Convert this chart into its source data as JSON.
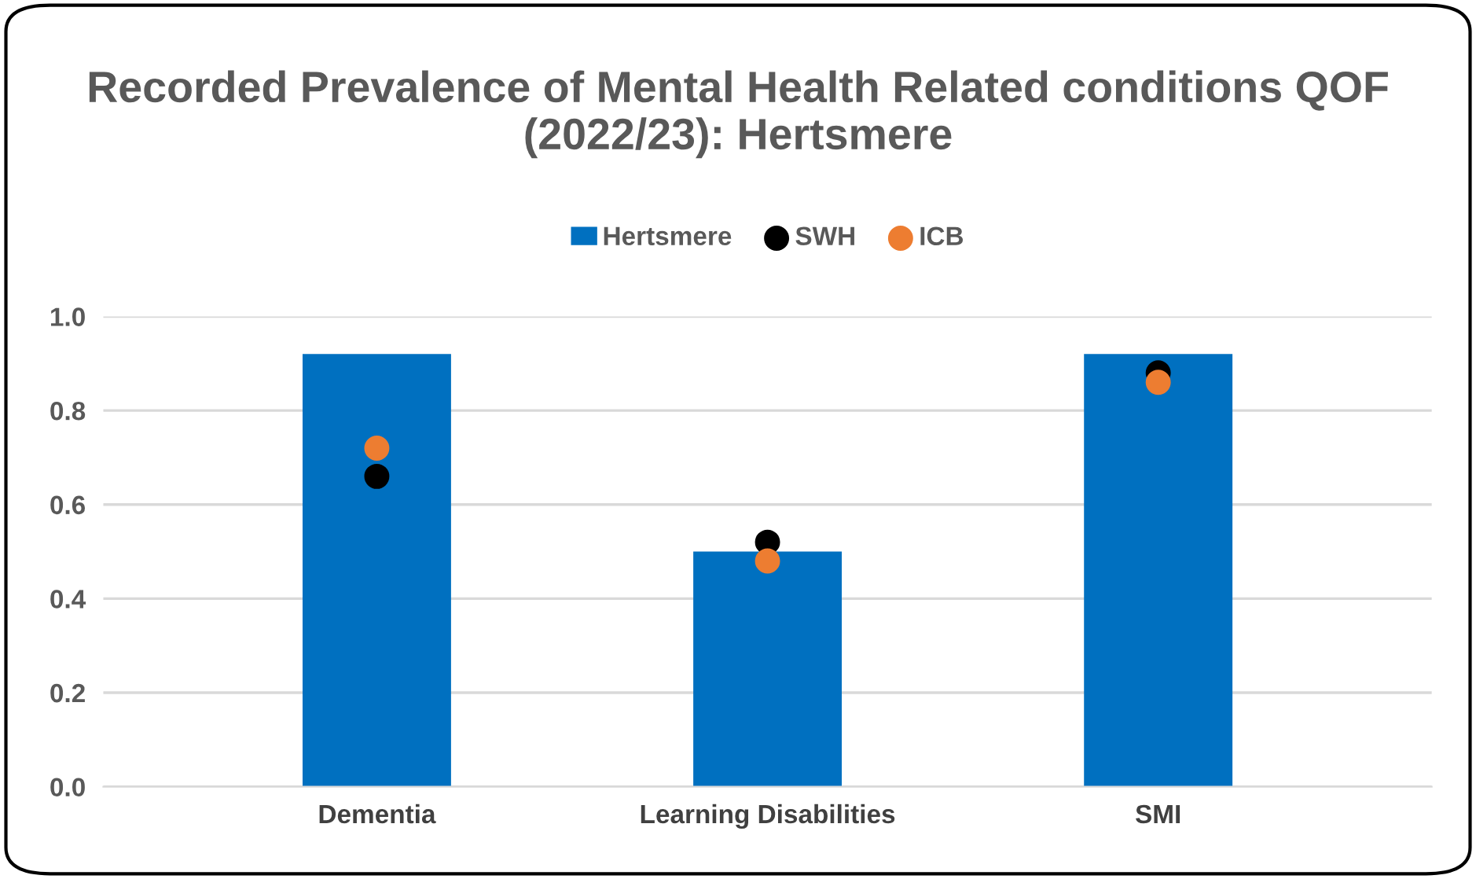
{
  "chart_data": {
    "type": "bar",
    "title": "Recorded Prevalence of Mental Health Related conditions QOF (2022/23): Hertsmere",
    "categories": [
      "Dementia",
      "Learning Disabilities",
      "SMI"
    ],
    "series": [
      {
        "name": "Hertsmere",
        "color": "#0070c0",
        "values": [
          0.92,
          0.5,
          0.92
        ]
      },
      {
        "name": "SWH",
        "type": "scatter",
        "color": "#000000",
        "values": [
          0.66,
          0.52,
          0.88
        ]
      },
      {
        "name": "ICB",
        "type": "scatter",
        "color": "#ed7d31",
        "values": [
          0.72,
          0.48,
          0.86
        ]
      }
    ],
    "ylim": [
      0,
      1.0
    ],
    "yticks": [
      {
        "value": 0,
        "label": "0.0"
      },
      {
        "value": 0.2,
        "label": "0.2"
      },
      {
        "value": 0.4,
        "label": "0.4"
      },
      {
        "value": 0.6,
        "label": "0.6"
      },
      {
        "value": 0.8,
        "label": "0.8"
      },
      {
        "value": 1.0,
        "label": "1.0"
      }
    ],
    "grid": "y",
    "legend": "top",
    "marker": "circle"
  }
}
